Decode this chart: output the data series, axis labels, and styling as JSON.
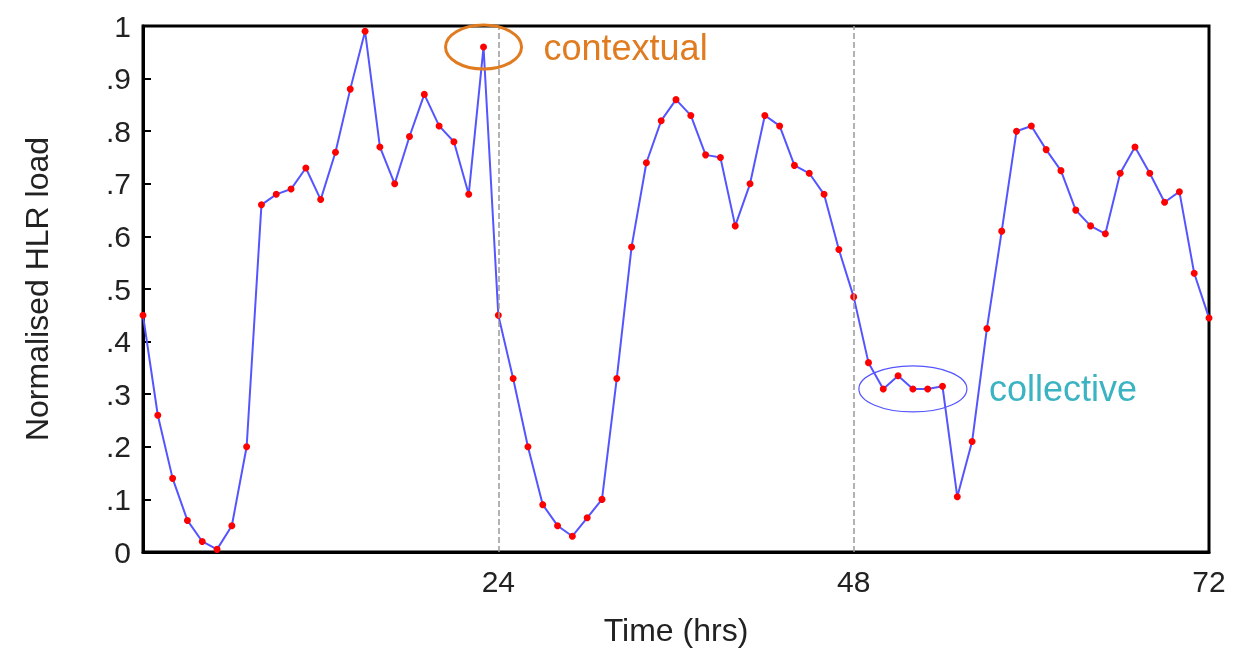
{
  "chart_data": {
    "type": "line",
    "xlabel": "Time (hrs)",
    "ylabel": "Normalised HLR load",
    "x": [
      0,
      1,
      2,
      3,
      4,
      5,
      6,
      7,
      8,
      9,
      10,
      11,
      12,
      13,
      14,
      15,
      16,
      17,
      18,
      19,
      20,
      21,
      22,
      23,
      24,
      25,
      26,
      27,
      28,
      29,
      30,
      31,
      32,
      33,
      34,
      35,
      36,
      37,
      38,
      39,
      40,
      41,
      42,
      43,
      44,
      45,
      46,
      47,
      48,
      49,
      50,
      51,
      52,
      53,
      54,
      55,
      56,
      57,
      58,
      59,
      60,
      61,
      62,
      63,
      64,
      65,
      66,
      67,
      68,
      69,
      70,
      71,
      72
    ],
    "series": [
      {
        "color": "#5555ff",
        "colors": [
          "#ff0000",
          "#ff0000",
          "#ff0000",
          "#ff0000",
          "#ff0000",
          "#ff0000",
          "#ff0000",
          "#ff0000",
          "#ff0000",
          "#ff0000",
          "#ff0000",
          "#ff0000",
          "#ff0000",
          "#ff0000",
          "#ff0000",
          "#ff0000",
          "#ff0000",
          "#ff0000",
          "#ff0000",
          "#ff0000",
          "#ff0000",
          "#ff0000",
          "#ff0000",
          "#ff0000",
          "#ff0000",
          "#ff0000",
          "#ff0000",
          "#ff0000",
          "#ff0000",
          "#ff0000",
          "#ff0000",
          "#ff0000",
          "#ff0000",
          "#ff0000",
          "#ff0000",
          "#ff0000",
          "#ff0000",
          "#ff0000",
          "#ff0000",
          "#ff0000",
          "#ff0000",
          "#ff0000",
          "#ff0000",
          "#ff0000",
          "#ff0000",
          "#ff0000",
          "#ff0000",
          "#ff0000",
          "#ff0000",
          "#ff0000",
          "#ff0000",
          "#ff0000",
          "#ff0000",
          "#ff0000",
          "#ff0000",
          "#ff0000",
          "#ff0000",
          "#ff0000",
          "#ff0000",
          "#ff0000",
          "#ff0000",
          "#ff0000",
          "#ff0000",
          "#ff0000",
          "#ff0000",
          "#ff0000",
          "#ff0000",
          "#ff0000",
          "#ff0000",
          "#ff0000",
          "#ff0000",
          "#ff0000",
          "#ff0000"
        ],
        "values": [
          0.45,
          0.26,
          0.14,
          0.06,
          0.02,
          0.005,
          0.05,
          0.2,
          0.66,
          0.68,
          0.69,
          0.73,
          0.67,
          0.76,
          0.88,
          0.99,
          0.77,
          0.7,
          0.79,
          0.87,
          0.81,
          0.78,
          0.68,
          0.96,
          0.45,
          0.33,
          0.2,
          0.09,
          0.05,
          0.03,
          0.065,
          0.1,
          0.33,
          0.58,
          0.74,
          0.82,
          0.86,
          0.83,
          0.755,
          0.75,
          0.62,
          0.7,
          0.83,
          0.81,
          0.735,
          0.72,
          0.68,
          0.575,
          0.485,
          0.36,
          0.31,
          0.335,
          0.31,
          0.31,
          0.315,
          0.105,
          0.21,
          0.425,
          0.61,
          0.8,
          0.81,
          0.765,
          0.725,
          0.65,
          0.62,
          0.605,
          0.72,
          0.77,
          0.72,
          0.665,
          0.685,
          0.53,
          0.445
        ]
      }
    ],
    "xlim": [
      0,
      72
    ],
    "xticks": [
      24,
      48,
      72
    ],
    "ylim": [
      0,
      1
    ],
    "yticks": [
      0,
      {
        "value": 0.1,
        "label": ".1"
      },
      {
        "value": 0.2,
        "label": ".2"
      },
      {
        "value": 0.3,
        "label": ".3"
      },
      {
        "value": 0.4,
        "label": ".4"
      },
      {
        "value": 0.5,
        "label": ".5"
      },
      {
        "value": 0.6,
        "label": ".6"
      },
      {
        "value": 0.7,
        "label": ".7"
      },
      {
        "value": 0.8,
        "label": ".8"
      },
      {
        "value": 0.9,
        "label": ".9"
      },
      1
    ],
    "ref_lines": [
      {
        "axis": "x",
        "value": 24,
        "color": "#999999",
        "line_style": "dashed"
      },
      {
        "axis": "x",
        "value": 48,
        "color": "#999999",
        "line_style": "dashed"
      }
    ],
    "annotations": [
      {
        "text": "contextual",
        "x": 23,
        "y": 0.96
      },
      {
        "text": "collective",
        "x": 52,
        "y": 0.31
      }
    ],
    "grid": false,
    "marker": "circle",
    "line_style": "solid"
  }
}
